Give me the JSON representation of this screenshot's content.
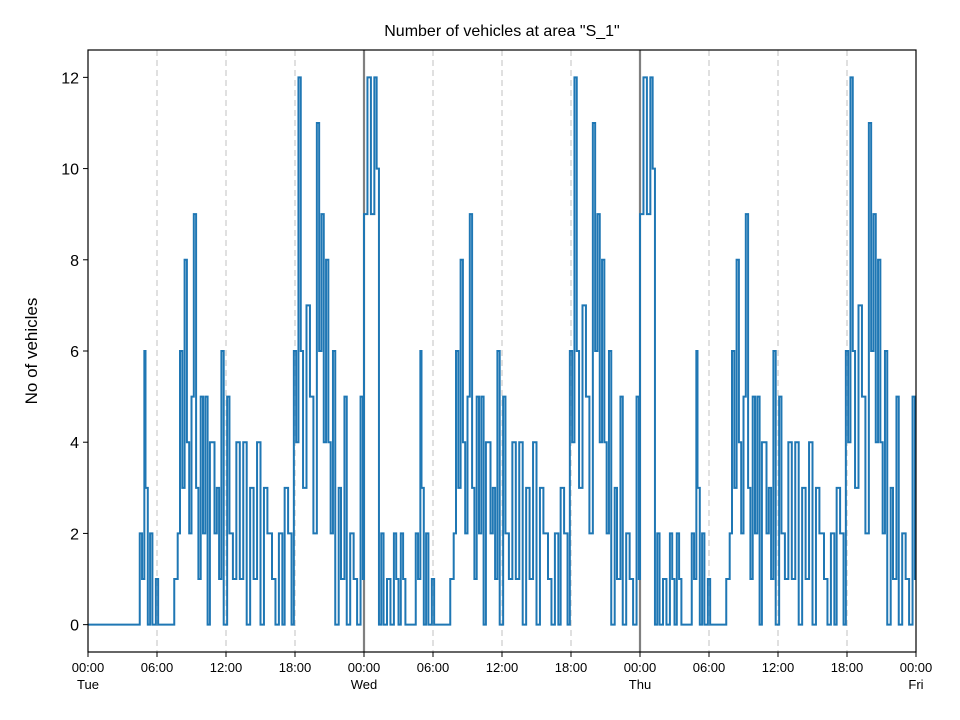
{
  "chart_data": {
    "type": "step-line",
    "title": "Number of vehicles at area \"S_1\"",
    "y_label": "No of vehicles",
    "color": "#1f77b4",
    "grid": "x-dashed",
    "xlim": [
      0,
      72
    ],
    "ylim": [
      -0.6,
      12.6
    ],
    "yticks": [
      0,
      2,
      4,
      6,
      8,
      10,
      12
    ],
    "xticks": [
      {
        "value": 0,
        "label": "00:00"
      },
      {
        "value": 6,
        "label": "06:00"
      },
      {
        "value": 12,
        "label": "12:00"
      },
      {
        "value": 18,
        "label": "18:00"
      },
      {
        "value": 24,
        "label": "00:00"
      },
      {
        "value": 30,
        "label": "06:00"
      },
      {
        "value": 36,
        "label": "12:00"
      },
      {
        "value": 42,
        "label": "18:00"
      },
      {
        "value": 48,
        "label": "00:00"
      },
      {
        "value": 54,
        "label": "06:00"
      },
      {
        "value": 60,
        "label": "12:00"
      },
      {
        "value": 66,
        "label": "18:00"
      },
      {
        "value": 72,
        "label": "00:00"
      }
    ],
    "day_ticks": [
      {
        "value": 0,
        "label": "Tue"
      },
      {
        "value": 24,
        "label": "Wed"
      },
      {
        "value": 48,
        "label": "Thu"
      },
      {
        "value": 72,
        "label": "Fri"
      }
    ],
    "x": [
      0,
      4.5,
      4.7,
      4.9,
      5,
      5.2,
      5.4,
      5.6,
      5.9,
      6.1,
      7.5,
      7.8,
      8,
      8.2,
      8.4,
      8.6,
      8.8,
      9,
      9.2,
      9.4,
      9.6,
      9.8,
      10,
      10.2,
      10.4,
      10.6,
      11,
      11.2,
      11.4,
      11.6,
      11.8,
      12.1,
      12.3,
      12.6,
      12.9,
      13.2,
      13.5,
      13.8,
      14.1,
      14.4,
      14.7,
      15,
      15.3,
      15.6,
      16,
      16.3,
      16.6,
      16.9,
      17.1,
      17.4,
      17.7,
      17.9,
      18.1,
      18.3,
      18.5,
      18.7,
      19,
      19.3,
      19.6,
      19.9,
      20.1,
      20.3,
      20.5,
      20.7,
      20.9,
      21.1,
      21.3,
      21.5,
      21.8,
      22,
      22.3,
      22.5,
      22.8,
      23.1,
      23.4,
      23.7,
      23.9,
      24,
      24.3,
      24.6,
      24.9,
      25.1,
      25.3,
      25.5,
      25.7,
      26,
      26.3,
      26.6,
      26.8,
      27,
      27.2,
      27.4,
      27.6,
      28.5,
      28.7,
      28.9,
      29,
      29.2,
      29.4,
      29.6,
      29.9,
      30.1,
      31.5,
      31.8,
      32,
      32.2,
      32.4,
      32.6,
      32.8,
      33,
      33.2,
      33.4,
      33.6,
      33.8,
      34,
      34.2,
      34.4,
      34.6,
      35,
      35.2,
      35.4,
      35.6,
      35.8,
      36.1,
      36.3,
      36.6,
      36.9,
      37.2,
      37.5,
      37.8,
      38.1,
      38.4,
      38.7,
      39,
      39.3,
      39.6,
      40,
      40.3,
      40.6,
      40.9,
      41.1,
      41.4,
      41.7,
      41.9,
      42.1,
      42.3,
      42.5,
      42.7,
      43,
      43.3,
      43.6,
      43.9,
      44.1,
      44.3,
      44.5,
      44.7,
      44.9,
      45.1,
      45.3,
      45.5,
      45.8,
      46,
      46.3,
      46.5,
      46.8,
      47.1,
      47.4,
      47.7,
      47.9,
      48,
      48.3,
      48.6,
      48.9,
      49.1,
      49.3,
      49.5,
      49.7,
      50,
      50.3,
      50.6,
      50.8,
      51,
      51.2,
      51.4,
      51.6,
      52.5,
      52.7,
      52.9,
      53,
      53.2,
      53.4,
      53.6,
      53.9,
      54.1,
      55.5,
      55.8,
      56,
      56.2,
      56.4,
      56.6,
      56.8,
      57,
      57.2,
      57.4,
      57.6,
      57.8,
      58,
      58.2,
      58.4,
      58.6,
      59,
      59.2,
      59.4,
      59.6,
      59.8,
      60.1,
      60.3,
      60.6,
      60.9,
      61.2,
      61.5,
      61.8,
      62.1,
      62.4,
      62.7,
      63,
      63.3,
      63.6,
      64,
      64.3,
      64.6,
      64.9,
      65.1,
      65.4,
      65.7,
      65.9,
      66.1,
      66.3,
      66.5,
      66.7,
      67,
      67.3,
      67.6,
      67.9,
      68.1,
      68.3,
      68.5,
      68.7,
      68.9,
      69.1,
      69.3,
      69.5,
      69.8,
      70,
      70.3,
      70.5,
      70.8,
      71.1,
      71.4,
      71.7,
      71.9
    ],
    "values": [
      0,
      2,
      1,
      6,
      3,
      0,
      2,
      0,
      1,
      0,
      1,
      2,
      6,
      3,
      8,
      4,
      2,
      5,
      9,
      3,
      1,
      5,
      2,
      5,
      0,
      4,
      2,
      3,
      1,
      6,
      0,
      5,
      2,
      1,
      4,
      1,
      4,
      0,
      3,
      1,
      4,
      0,
      3,
      2,
      1,
      0,
      2,
      0,
      3,
      2,
      0,
      6,
      4,
      12,
      6,
      3,
      7,
      5,
      2,
      11,
      6,
      9,
      4,
      8,
      4,
      2,
      6,
      0,
      3,
      1,
      5,
      0,
      2,
      1,
      0,
      5,
      1,
      9,
      12,
      9,
      12,
      10,
      0,
      2,
      0,
      1,
      0,
      2,
      1,
      0,
      2,
      1,
      0,
      2,
      1,
      6,
      3,
      0,
      2,
      0,
      1,
      0,
      1,
      2,
      6,
      3,
      8,
      4,
      2,
      5,
      9,
      3,
      1,
      5,
      2,
      5,
      0,
      4,
      2,
      3,
      1,
      6,
      0,
      5,
      2,
      1,
      4,
      1,
      4,
      0,
      3,
      1,
      4,
      0,
      3,
      2,
      1,
      0,
      2,
      0,
      3,
      2,
      0,
      6,
      4,
      12,
      6,
      3,
      7,
      5,
      2,
      11,
      6,
      9,
      4,
      8,
      4,
      2,
      6,
      0,
      3,
      1,
      5,
      0,
      2,
      1,
      0,
      5,
      1,
      9,
      12,
      9,
      12,
      10,
      0,
      2,
      0,
      1,
      0,
      2,
      1,
      0,
      2,
      1,
      0,
      2,
      1,
      6,
      3,
      0,
      2,
      0,
      1,
      0,
      1,
      2,
      6,
      3,
      8,
      4,
      2,
      5,
      9,
      3,
      1,
      5,
      2,
      5,
      0,
      4,
      2,
      3,
      1,
      6,
      0,
      5,
      2,
      1,
      4,
      1,
      4,
      0,
      3,
      1,
      4,
      0,
      3,
      2,
      1,
      0,
      2,
      0,
      3,
      2,
      0,
      6,
      4,
      12,
      6,
      3,
      7,
      5,
      2,
      11,
      6,
      9,
      4,
      8,
      4,
      2,
      6,
      0,
      3,
      1,
      5,
      0,
      2,
      1,
      0,
      5,
      1
    ]
  }
}
